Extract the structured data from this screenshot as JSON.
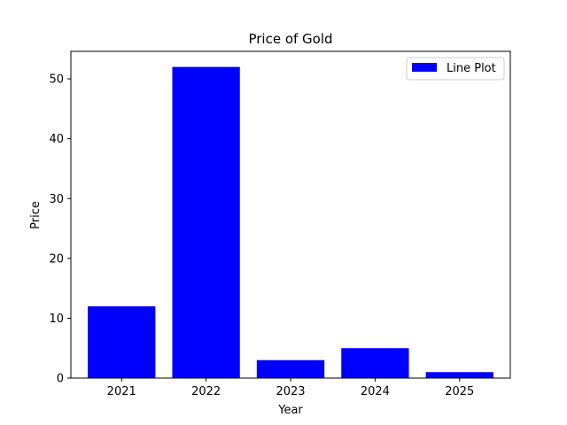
{
  "chart_data": {
    "type": "bar",
    "title": "Price of Gold",
    "xlabel": "Year",
    "ylabel": "Price",
    "categories": [
      "2021",
      "2022",
      "2023",
      "2024",
      "2025"
    ],
    "series": [
      {
        "name": "Line Plot",
        "values": [
          12,
          52,
          3,
          5,
          1
        ],
        "color": "#0000ff"
      }
    ],
    "ylim": [
      0,
      54.6
    ],
    "yticks": [
      0,
      10,
      20,
      30,
      40,
      50
    ],
    "grid": false,
    "legend_position": "top-right"
  }
}
